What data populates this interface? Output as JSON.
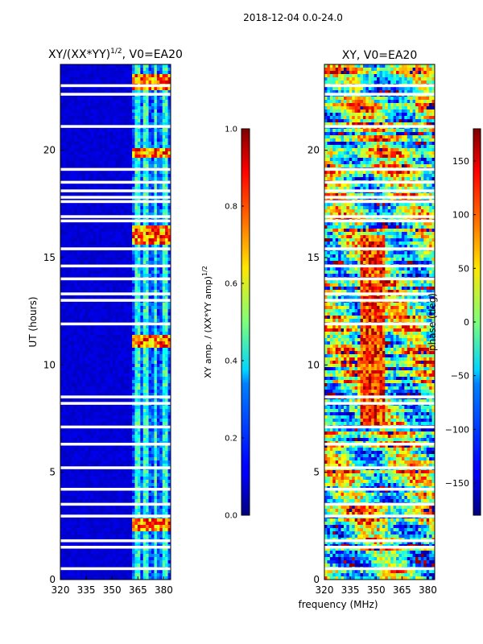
{
  "suptitle": "2018-12-04 0.0-24.0",
  "chart_data": [
    {
      "type": "heatmap",
      "title_main": "XY/(XX*YY)",
      "title_sup": "1/2",
      "title_rest": ", V0=EA20",
      "xlabel": "",
      "ylabel": "UT (hours)",
      "xlim": [
        320,
        384
      ],
      "ylim": [
        0,
        24
      ],
      "xticks": [
        320,
        335,
        350,
        365,
        380
      ],
      "yticks": [
        0,
        5,
        10,
        15,
        20
      ],
      "bright_columns_mhz": [
        364.5,
        370,
        375,
        380.5
      ],
      "bright_band_hours": [
        [
          2.3,
          2.8
        ],
        [
          10.8,
          11.4
        ],
        [
          15.6,
          16.5
        ],
        [
          19.6,
          20.1
        ],
        [
          22.8,
          23.6
        ]
      ],
      "blank_rows_hours": [
        0.5,
        1.5,
        1.8,
        2.95,
        3.5,
        4.2,
        5.2,
        6.3,
        7.1,
        8.2,
        8.5,
        11.9,
        13.0,
        13.3,
        14.0,
        14.6,
        15.4,
        16.7,
        16.9,
        17.6,
        17.8,
        18.1,
        18.5,
        19.1,
        21.1,
        22.6,
        23.0
      ],
      "colorbar": {
        "label_main": "XY amp. / (XX*YY amp)",
        "label_sup": "1/2",
        "min": 0.0,
        "max": 1.0,
        "ticks": [
          "0.0",
          "0.2",
          "0.4",
          "0.6",
          "0.8",
          "1.0"
        ],
        "tick_values": [
          0,
          0.2,
          0.4,
          0.6,
          0.8,
          1.0
        ]
      }
    },
    {
      "type": "heatmap",
      "title": "XY, V0=EA20",
      "xlabel": "frequency (MHz)",
      "ylabel": "",
      "xlim": [
        320,
        384
      ],
      "ylim": [
        0,
        24
      ],
      "xticks": [
        320,
        335,
        350,
        365,
        380
      ],
      "yticks": [
        0,
        5,
        10,
        15,
        20
      ],
      "blank_rows_hours": [
        0.5,
        1.5,
        1.8,
        2.95,
        3.5,
        4.2,
        5.2,
        6.3,
        7.1,
        8.2,
        8.5,
        11.9,
        13.0,
        13.3,
        14.0,
        14.6,
        15.4,
        16.7,
        16.9,
        17.6,
        17.8,
        18.1,
        18.5,
        19.1,
        21.1,
        22.6,
        23.0
      ],
      "colorbar": {
        "label": "phase (deg)",
        "min": -180,
        "max": 180,
        "ticks": [
          "150",
          "100",
          "50",
          "0",
          "−50",
          "−100",
          "−150"
        ],
        "tick_values": [
          150,
          100,
          50,
          0,
          -50,
          -100,
          -150
        ]
      }
    }
  ]
}
